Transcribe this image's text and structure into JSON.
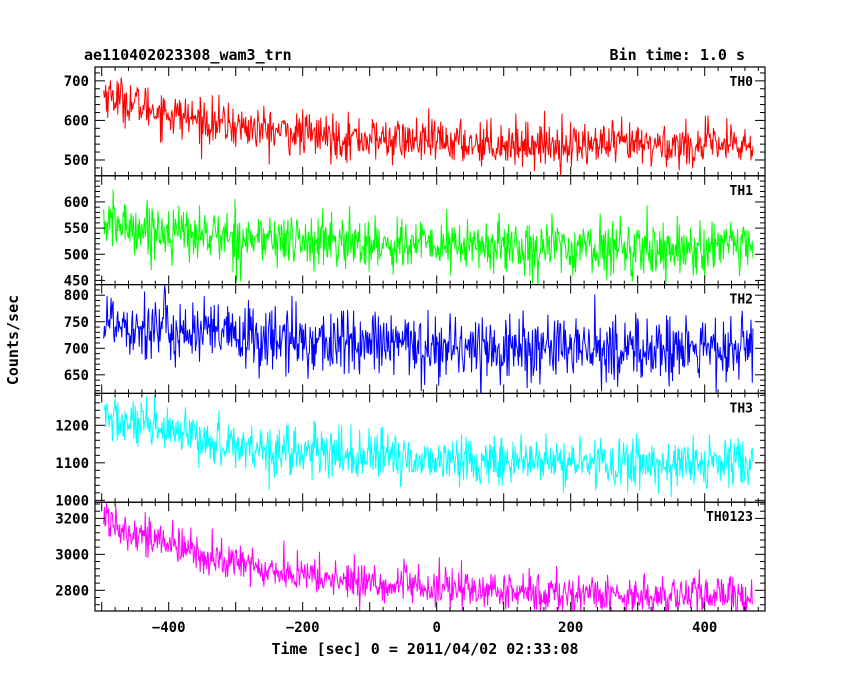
{
  "header": {
    "title": "ae110402023308_wam3_trn",
    "bin_time": "Bin time: 1.0 s"
  },
  "chart_data": {
    "type": "line",
    "title": "ae110402023308_wam3_trn",
    "xlabel": "Time [sec] 0 = 2011/04/02 02:33:08",
    "ylabel": "Counts/sec",
    "xlim": [
      -510,
      490
    ],
    "x_ticks": [
      -400,
      -200,
      0,
      200,
      400
    ],
    "x_tick_labels": [
      "−400",
      "−200",
      "0",
      "200",
      "400"
    ],
    "x_range": [
      -497,
      472
    ],
    "bin_time_s": 1.0,
    "grid": false,
    "legend": "none",
    "panels": [
      {
        "name": "TH0",
        "color": "#ff0000",
        "ylim": [
          460,
          735
        ],
        "y_ticks": [
          500,
          600,
          700
        ],
        "y_tick_labels": [
          "500",
          "600",
          "700"
        ],
        "trend": {
          "start": 670,
          "end": 535,
          "tau": 200
        },
        "noise": 28,
        "x": [
          -500,
          -450,
          -400,
          -350,
          -300,
          -250,
          -200,
          -150,
          -100,
          -50,
          0,
          50,
          100,
          150,
          200,
          250,
          300,
          350,
          400,
          450
        ],
        "y": [
          690,
          640,
          605,
          588,
          580,
          572,
          565,
          560,
          556,
          552,
          548,
          545,
          543,
          541,
          540,
          538,
          537,
          536,
          535,
          535
        ]
      },
      {
        "name": "TH1",
        "color": "#00ff00",
        "ylim": [
          442,
          650
        ],
        "y_ticks": [
          450,
          500,
          550,
          600
        ],
        "y_tick_labels": [
          "450",
          "500",
          "550",
          "600"
        ],
        "trend": {
          "start": 560,
          "end": 510,
          "tau": 250
        },
        "noise": 26,
        "x": [
          -500,
          -450,
          -400,
          -350,
          -300,
          -250,
          -200,
          -150,
          -100,
          -50,
          0,
          50,
          100,
          150,
          200,
          250,
          300,
          350,
          400,
          450
        ],
        "y": [
          575,
          560,
          550,
          540,
          532,
          527,
          522,
          519,
          516,
          514,
          512,
          511,
          510,
          510,
          510,
          512,
          514,
          515,
          516,
          517
        ]
      },
      {
        "name": "TH2",
        "color": "#0000ff",
        "ylim": [
          615,
          820
        ],
        "y_ticks": [
          650,
          700,
          750,
          800
        ],
        "y_tick_labels": [
          "650",
          "700",
          "750",
          "800"
        ],
        "trend": {
          "start": 755,
          "end": 695,
          "tau": 250
        },
        "noise": 32,
        "x": [
          -500,
          -450,
          -400,
          -350,
          -300,
          -250,
          -200,
          -150,
          -100,
          -50,
          0,
          50,
          100,
          150,
          200,
          250,
          300,
          350,
          400,
          450
        ],
        "y": [
          765,
          745,
          735,
          725,
          718,
          712,
          707,
          703,
          700,
          698,
          696,
          695,
          694,
          694,
          694,
          694,
          694,
          695,
          697,
          698
        ]
      },
      {
        "name": "TH3",
        "color": "#00ffff",
        "ylim": [
          995,
          1285
        ],
        "y_ticks": [
          1000,
          1100,
          1200
        ],
        "y_tick_labels": [
          "1000",
          "1100",
          "1200"
        ],
        "trend": {
          "start": 1225,
          "end": 1095,
          "tau": 220
        },
        "noise": 33,
        "x": [
          -500,
          -450,
          -400,
          -350,
          -300,
          -250,
          -200,
          -150,
          -100,
          -50,
          0,
          50,
          100,
          150,
          200,
          250,
          300,
          350,
          400,
          450
        ],
        "y": [
          1225,
          1205,
          1185,
          1165,
          1148,
          1135,
          1125,
          1118,
          1112,
          1108,
          1105,
          1102,
          1100,
          1098,
          1097,
          1096,
          1095,
          1095,
          1096,
          1098
        ]
      },
      {
        "name": "TH0123",
        "color": "#ff00ff",
        "ylim": [
          2685,
          3290
        ],
        "y_ticks": [
          2800,
          3000,
          3200
        ],
        "y_tick_labels": [
          "2800",
          "3000",
          "3200"
        ],
        "trend": {
          "start": 3210,
          "end": 2760,
          "tau": 230
        },
        "noise": 55,
        "x": [
          -500,
          -450,
          -400,
          -350,
          -300,
          -250,
          -200,
          -150,
          -100,
          -50,
          0,
          50,
          100,
          150,
          200,
          250,
          300,
          350,
          400,
          450
        ],
        "y": [
          3215,
          3120,
          3050,
          2990,
          2940,
          2900,
          2870,
          2845,
          2825,
          2810,
          2800,
          2790,
          2782,
          2776,
          2770,
          2766,
          2763,
          2761,
          2760,
          2760
        ]
      }
    ]
  }
}
